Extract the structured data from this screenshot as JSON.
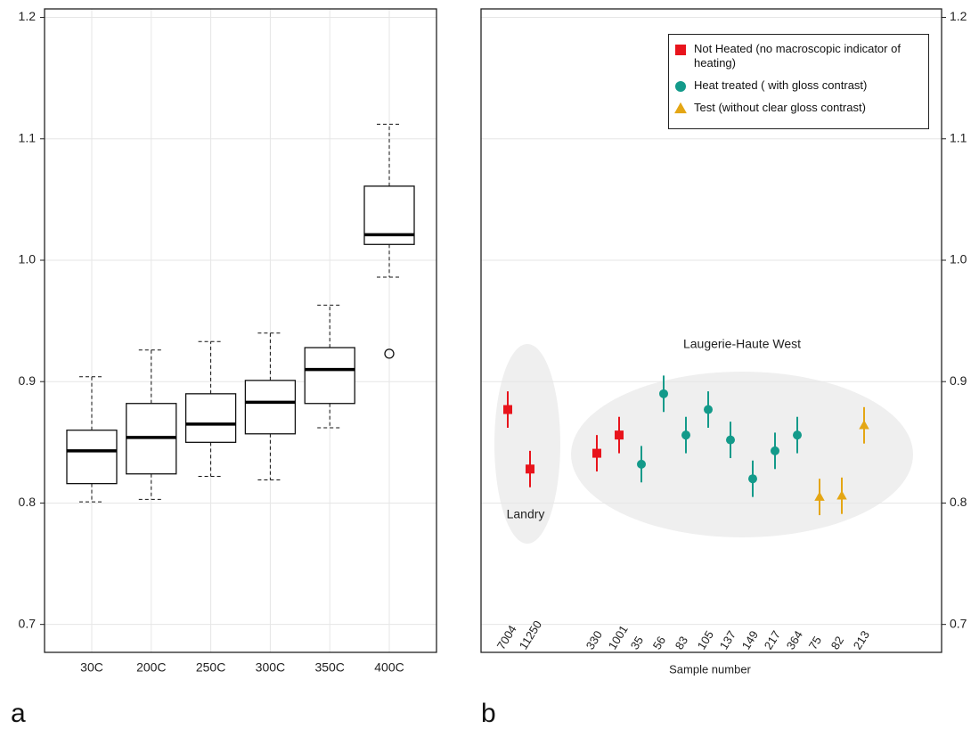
{
  "chart_data": [
    {
      "type": "box",
      "panel_label": "a",
      "categories": [
        "30C",
        "200C",
        "250C",
        "300C",
        "350C",
        "400C"
      ],
      "whisker_high": [
        0.904,
        0.926,
        0.933,
        0.94,
        0.963,
        1.112
      ],
      "q3": [
        0.86,
        0.882,
        0.89,
        0.901,
        0.928,
        1.061
      ],
      "median": [
        0.843,
        0.854,
        0.865,
        0.883,
        0.91,
        1.021
      ],
      "q1": [
        0.816,
        0.824,
        0.85,
        0.857,
        0.882,
        1.013
      ],
      "whisker_low": [
        0.801,
        0.803,
        0.822,
        0.819,
        0.862,
        0.986
      ],
      "outliers": [
        [],
        [],
        [],
        [],
        [],
        [
          0.923
        ]
      ],
      "ylim": [
        0.677,
        1.207
      ],
      "yticks": [
        0.7,
        0.8,
        0.9,
        {
          "value": 1,
          "label": "1.0"
        },
        1.1,
        1.2
      ],
      "grid": true
    },
    {
      "type": "errorbar",
      "panel_label": "b",
      "xlabel": "Sample number",
      "categories": [
        "7004",
        "11250",
        null,
        null,
        "330",
        "1001",
        "35",
        "56",
        "83",
        "105",
        "137",
        "149",
        "217",
        "364",
        "75",
        "82",
        "213"
      ],
      "series": [
        {
          "name": "Not Heated (no macroscopic indicator of heating)",
          "color": "#e8141c",
          "marker": "square",
          "values": [
            0.877,
            0.828,
            null,
            null,
            0.841,
            0.856,
            null,
            null,
            null,
            null,
            null,
            null,
            null,
            null,
            null,
            null,
            null
          ],
          "errors": [
            0.015,
            0.015,
            null,
            null,
            0.015,
            0.015,
            null,
            null,
            null,
            null,
            null,
            null,
            null,
            null,
            null,
            null,
            null
          ]
        },
        {
          "name": "Heat treated ( with gloss contrast)",
          "color": "#139a8a",
          "marker": "circle",
          "values": [
            null,
            null,
            null,
            null,
            null,
            null,
            0.832,
            0.89,
            0.856,
            0.877,
            0.852,
            0.82,
            0.843,
            0.856,
            null,
            null,
            null
          ],
          "errors": [
            null,
            null,
            null,
            null,
            null,
            null,
            0.015,
            0.015,
            0.015,
            0.015,
            0.015,
            0.015,
            0.015,
            0.015,
            null,
            null,
            null
          ]
        },
        {
          "name": "Test (without clear gloss contrast)",
          "color": "#e4a614",
          "marker": "triangle",
          "values": [
            null,
            null,
            null,
            null,
            null,
            null,
            null,
            null,
            null,
            null,
            null,
            null,
            null,
            null,
            0.805,
            0.806,
            0.864
          ],
          "errors": [
            null,
            null,
            null,
            null,
            null,
            null,
            null,
            null,
            null,
            null,
            null,
            null,
            null,
            null,
            0.015,
            0.015,
            0.015
          ]
        }
      ],
      "annotations": [
        "Landry",
        "Laugerie-Haute West"
      ],
      "ylim": [
        0.677,
        1.207
      ],
      "yticks": [
        0.7,
        0.8,
        0.9,
        {
          "value": 1,
          "label": "1.0"
        },
        1.1,
        1.2
      ],
      "grid": true
    }
  ]
}
